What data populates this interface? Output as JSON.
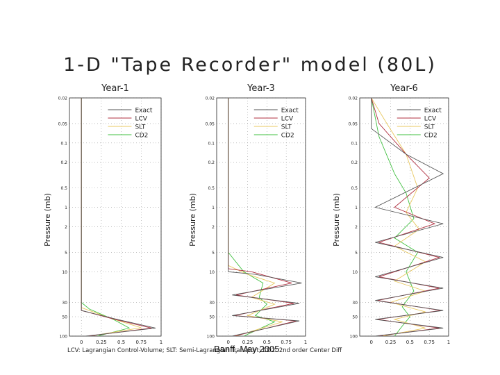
{
  "title": "1-D \"Tape Recorder\" model (80L)",
  "footer": "LCV: Lagrangian Control-Volume; SLT: Semi-Lagrangian Transport; CD2: 2nd order Center Diff",
  "watermark": "Banff, May 2005",
  "colors": {
    "Exact": "#555555",
    "LCV": "#b03040",
    "SLT": "#e8c860",
    "CD2": "#40c040"
  },
  "chart_data": [
    {
      "type": "line",
      "title": "Year-1",
      "ylabel": "Pressure (mb)",
      "yscale": "log",
      "ylim": [
        0.02,
        100
      ],
      "xlim": [
        -0.15,
        1.0
      ],
      "yticks": [
        0.02,
        0.05,
        0.1,
        0.2,
        0.5,
        1,
        2,
        5,
        10,
        30,
        50,
        100
      ],
      "ytick_labels": [
        "0.02",
        "0.05",
        "0.1",
        "0.2",
        "0.5",
        "1",
        "2",
        "5",
        "10",
        "30",
        "50",
        "100"
      ],
      "xticks": [
        0,
        0.25,
        0.5,
        0.75,
        1
      ],
      "xtick_labels": [
        "0",
        "0.25",
        "0.5",
        "0.75",
        "1"
      ],
      "legend": [
        "Exact",
        "LCV",
        "SLT",
        "CD2"
      ],
      "series": [
        {
          "name": "Exact",
          "points": [
            [
              0,
              0.02
            ],
            [
              0,
              40
            ],
            [
              0.45,
              55
            ],
            [
              0.93,
              75
            ],
            [
              0.05,
              100
            ]
          ]
        },
        {
          "name": "LCV",
          "points": [
            [
              0,
              0.02
            ],
            [
              0,
              40
            ],
            [
              0.42,
              55
            ],
            [
              0.88,
              75
            ],
            [
              0.08,
              100
            ]
          ]
        },
        {
          "name": "SLT",
          "points": [
            [
              0,
              0.02
            ],
            [
              0,
              36
            ],
            [
              0.35,
              52
            ],
            [
              0.75,
              74
            ],
            [
              0.15,
              98
            ]
          ]
        },
        {
          "name": "CD2",
          "points": [
            [
              0,
              0.02
            ],
            [
              0,
              30
            ],
            [
              0.1,
              38
            ],
            [
              0.4,
              55
            ],
            [
              0.6,
              75
            ],
            [
              0.2,
              100
            ]
          ]
        }
      ]
    },
    {
      "type": "line",
      "title": "Year-3",
      "ylabel": "Pressure (mb)",
      "yscale": "log",
      "ylim": [
        0.02,
        100
      ],
      "xlim": [
        -0.15,
        1.0
      ],
      "yticks": [
        0.02,
        0.05,
        0.1,
        0.2,
        0.5,
        1,
        2,
        5,
        10,
        30,
        50,
        100
      ],
      "ytick_labels": [
        "0.02",
        "0.05",
        "0.1",
        "0.2",
        "0.5",
        "1",
        "2",
        "5",
        "10",
        "30",
        "50",
        "100"
      ],
      "xticks": [
        0,
        0.25,
        0.5,
        0.75,
        1
      ],
      "xtick_labels": [
        "0",
        "0.25",
        "0.5",
        "0.75",
        "1"
      ],
      "legend": [
        "Exact",
        "LCV",
        "SLT",
        "CD2"
      ],
      "series": [
        {
          "name": "Exact",
          "points": [
            [
              0,
              0.02
            ],
            [
              0,
              10
            ],
            [
              0.35,
              11
            ],
            [
              0.95,
              15
            ],
            [
              0.05,
              23
            ],
            [
              0.92,
              31
            ],
            [
              0.05,
              48
            ],
            [
              0.92,
              58
            ],
            [
              0.05,
              100
            ]
          ]
        },
        {
          "name": "LCV",
          "points": [
            [
              0,
              0.02
            ],
            [
              0,
              9
            ],
            [
              0.3,
              10
            ],
            [
              0.82,
              15
            ],
            [
              0.1,
              23
            ],
            [
              0.85,
              31
            ],
            [
              0.08,
              48
            ],
            [
              0.88,
              58
            ],
            [
              0.08,
              100
            ]
          ]
        },
        {
          "name": "SLT",
          "points": [
            [
              0,
              0.02
            ],
            [
              0,
              8
            ],
            [
              0.25,
              11
            ],
            [
              0.6,
              15
            ],
            [
              0.3,
              25
            ],
            [
              0.6,
              32
            ],
            [
              0.25,
              48
            ],
            [
              0.7,
              60
            ],
            [
              0.1,
              100
            ]
          ]
        },
        {
          "name": "CD2",
          "points": [
            [
              0,
              0.02
            ],
            [
              0,
              5
            ],
            [
              0.2,
              10
            ],
            [
              0.45,
              15
            ],
            [
              0.4,
              25
            ],
            [
              0.5,
              32
            ],
            [
              0.35,
              48
            ],
            [
              0.6,
              60
            ],
            [
              0.2,
              100
            ]
          ]
        }
      ]
    },
    {
      "type": "line",
      "title": "Year-6",
      "ylabel": "Pressure (mb)",
      "yscale": "log",
      "ylim": [
        0.02,
        100
      ],
      "xlim": [
        -0.15,
        1.0
      ],
      "yticks": [
        0.02,
        0.05,
        0.1,
        0.2,
        0.5,
        1,
        2,
        5,
        10,
        30,
        50,
        100
      ],
      "ytick_labels": [
        "0.02",
        "0.05",
        "0.1",
        "0.2",
        "0.5",
        "1",
        "2",
        "5",
        "10",
        "30",
        "50",
        "100"
      ],
      "xticks": [
        0,
        0.25,
        0.5,
        0.75,
        1
      ],
      "xtick_labels": [
        "0",
        "0.25",
        "0.5",
        "0.75",
        "1"
      ],
      "legend": [
        "Exact",
        "LCV",
        "SLT",
        "CD2"
      ],
      "series": [
        {
          "name": "Exact",
          "points": [
            [
              0,
              0.02
            ],
            [
              0,
              0.06
            ],
            [
              0.45,
              0.15
            ],
            [
              0.93,
              0.3
            ],
            [
              0.05,
              1
            ],
            [
              0.93,
              1.8
            ],
            [
              0.05,
              3.5
            ],
            [
              0.93,
              6
            ],
            [
              0.05,
              12
            ],
            [
              0.93,
              18
            ],
            [
              0.05,
              28
            ],
            [
              0.93,
              40
            ],
            [
              0.05,
              55
            ],
            [
              0.93,
              75
            ],
            [
              0.05,
              100
            ]
          ]
        },
        {
          "name": "LCV",
          "points": [
            [
              0,
              0.02
            ],
            [
              0.1,
              0.05
            ],
            [
              0.45,
              0.15
            ],
            [
              0.75,
              0.35
            ],
            [
              0.3,
              1
            ],
            [
              0.82,
              1.8
            ],
            [
              0.1,
              3.5
            ],
            [
              0.88,
              6
            ],
            [
              0.1,
              12
            ],
            [
              0.88,
              18
            ],
            [
              0.08,
              28
            ],
            [
              0.9,
              40
            ],
            [
              0.08,
              55
            ],
            [
              0.88,
              75
            ],
            [
              0.08,
              100
            ]
          ]
        },
        {
          "name": "SLT",
          "points": [
            [
              0,
              0.02
            ],
            [
              0.2,
              0.05
            ],
            [
              0.45,
              0.15
            ],
            [
              0.6,
              0.5
            ],
            [
              0.45,
              1.2
            ],
            [
              0.62,
              2.2
            ],
            [
              0.3,
              4
            ],
            [
              0.7,
              7
            ],
            [
              0.3,
              14
            ],
            [
              0.7,
              20
            ],
            [
              0.25,
              30
            ],
            [
              0.7,
              42
            ],
            [
              0.3,
              55
            ],
            [
              0.7,
              75
            ],
            [
              0.15,
              100
            ]
          ]
        },
        {
          "name": "CD2",
          "points": [
            [
              0,
              0.02
            ],
            [
              0.1,
              0.08
            ],
            [
              0.3,
              0.3
            ],
            [
              0.45,
              0.6
            ],
            [
              0.55,
              1.5
            ],
            [
              0.3,
              3
            ],
            [
              0.6,
              5
            ],
            [
              0.45,
              10
            ],
            [
              0.55,
              20
            ],
            [
              0.4,
              35
            ],
            [
              0.5,
              50
            ],
            [
              0.4,
              70
            ],
            [
              0.3,
              100
            ]
          ]
        }
      ]
    }
  ]
}
